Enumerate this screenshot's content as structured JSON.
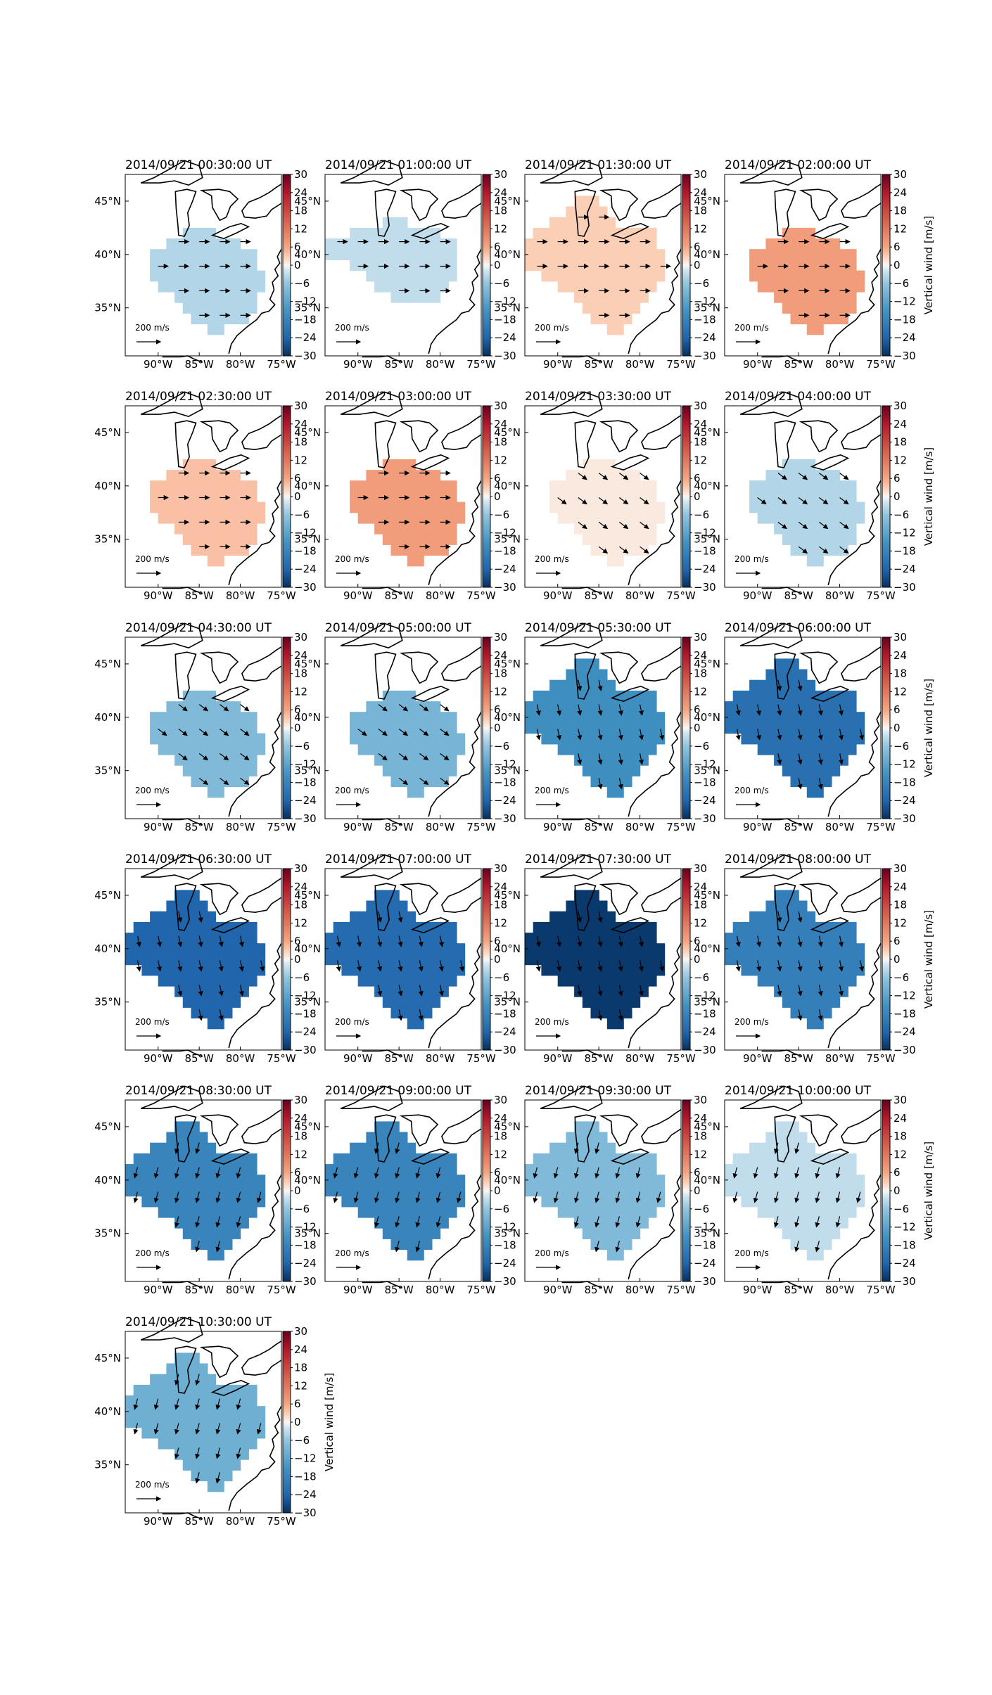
{
  "figure": {
    "colorbar_label": "Vertical wind [m/s]",
    "colorbar_ticks": [
      "30",
      "24",
      "18",
      "12",
      "6",
      "0",
      "−6",
      "−12",
      "−18",
      "−24",
      "−30"
    ],
    "lat_ticks": [
      "45°N",
      "40°N",
      "35°N"
    ],
    "lon_ticks": [
      "90°W",
      "85°W",
      "80°W",
      "75°W"
    ],
    "arrow_key_label": "200 m/s",
    "colors": {
      "strong_neg": "#08306b",
      "zero": "#f7f7f7",
      "strong_pos": "#67001f"
    }
  },
  "chart_data": [
    {
      "type": "heatmap",
      "title": "2014/09/21 00:30:00 UT",
      "vertical_wind": -4,
      "extent": "small",
      "arrows": "east",
      "colorbar_label_shown": false
    },
    {
      "type": "heatmap",
      "title": "2014/09/21 01:00:00 UT",
      "vertical_wind": -3,
      "extent": "west",
      "arrows": "east",
      "colorbar_label_shown": false
    },
    {
      "type": "heatmap",
      "title": "2014/09/21 01:30:00 UT",
      "vertical_wind": 3,
      "extent": "wide",
      "arrows": "east",
      "colorbar_label_shown": false
    },
    {
      "type": "heatmap",
      "title": "2014/09/21 02:00:00 UT",
      "vertical_wind": 7,
      "extent": "small",
      "arrows": "east",
      "colorbar_label_shown": true
    },
    {
      "type": "heatmap",
      "title": "2014/09/21 02:30:00 UT",
      "vertical_wind": 4,
      "extent": "small",
      "arrows": "east",
      "colorbar_label_shown": false
    },
    {
      "type": "heatmap",
      "title": "2014/09/21 03:00:00 UT",
      "vertical_wind": 7,
      "extent": "small",
      "arrows": "east",
      "colorbar_label_shown": false
    },
    {
      "type": "heatmap",
      "title": "2014/09/21 03:30:00 UT",
      "vertical_wind": 1,
      "extent": "small",
      "arrows": "southeast",
      "colorbar_label_shown": false
    },
    {
      "type": "heatmap",
      "title": "2014/09/21 04:00:00 UT",
      "vertical_wind": -4,
      "extent": "small",
      "arrows": "southeast",
      "colorbar_label_shown": true
    },
    {
      "type": "heatmap",
      "title": "2014/09/21 04:30:00 UT",
      "vertical_wind": -8,
      "extent": "small",
      "arrows": "southeast",
      "colorbar_label_shown": false
    },
    {
      "type": "heatmap",
      "title": "2014/09/21 05:00:00 UT",
      "vertical_wind": -9,
      "extent": "small",
      "arrows": "southeast",
      "colorbar_label_shown": false
    },
    {
      "type": "heatmap",
      "title": "2014/09/21 05:30:00 UT",
      "vertical_wind": -16,
      "extent": "wide",
      "arrows": "south",
      "colorbar_label_shown": false
    },
    {
      "type": "heatmap",
      "title": "2014/09/21 06:00:00 UT",
      "vertical_wind": -22,
      "extent": "wide",
      "arrows": "south",
      "colorbar_label_shown": true
    },
    {
      "type": "heatmap",
      "title": "2014/09/21 06:30:00 UT",
      "vertical_wind": -24,
      "extent": "wide",
      "arrows": "south",
      "colorbar_label_shown": false
    },
    {
      "type": "heatmap",
      "title": "2014/09/21 07:00:00 UT",
      "vertical_wind": -23,
      "extent": "wide",
      "arrows": "south",
      "colorbar_label_shown": false
    },
    {
      "type": "heatmap",
      "title": "2014/09/21 07:30:00 UT",
      "vertical_wind": -29,
      "extent": "wide",
      "arrows": "south",
      "colorbar_label_shown": false
    },
    {
      "type": "heatmap",
      "title": "2014/09/21 08:00:00 UT",
      "vertical_wind": -19,
      "extent": "wide",
      "arrows": "south",
      "colorbar_label_shown": true
    },
    {
      "type": "heatmap",
      "title": "2014/09/21 08:30:00 UT",
      "vertical_wind": -18,
      "extent": "wide",
      "arrows": "southwest",
      "colorbar_label_shown": false
    },
    {
      "type": "heatmap",
      "title": "2014/09/21 09:00:00 UT",
      "vertical_wind": -18,
      "extent": "wide",
      "arrows": "southwest",
      "colorbar_label_shown": false
    },
    {
      "type": "heatmap",
      "title": "2014/09/21 09:30:00 UT",
      "vertical_wind": -8,
      "extent": "wide",
      "arrows": "southwest",
      "colorbar_label_shown": false
    },
    {
      "type": "heatmap",
      "title": "2014/09/21 10:00:00 UT",
      "vertical_wind": -3,
      "extent": "wide",
      "arrows": "southwest",
      "colorbar_label_shown": true
    },
    {
      "type": "heatmap",
      "title": "2014/09/21 10:30:00 UT",
      "vertical_wind": -10,
      "extent": "wide",
      "arrows": "southwest",
      "colorbar_label_shown": true
    }
  ]
}
